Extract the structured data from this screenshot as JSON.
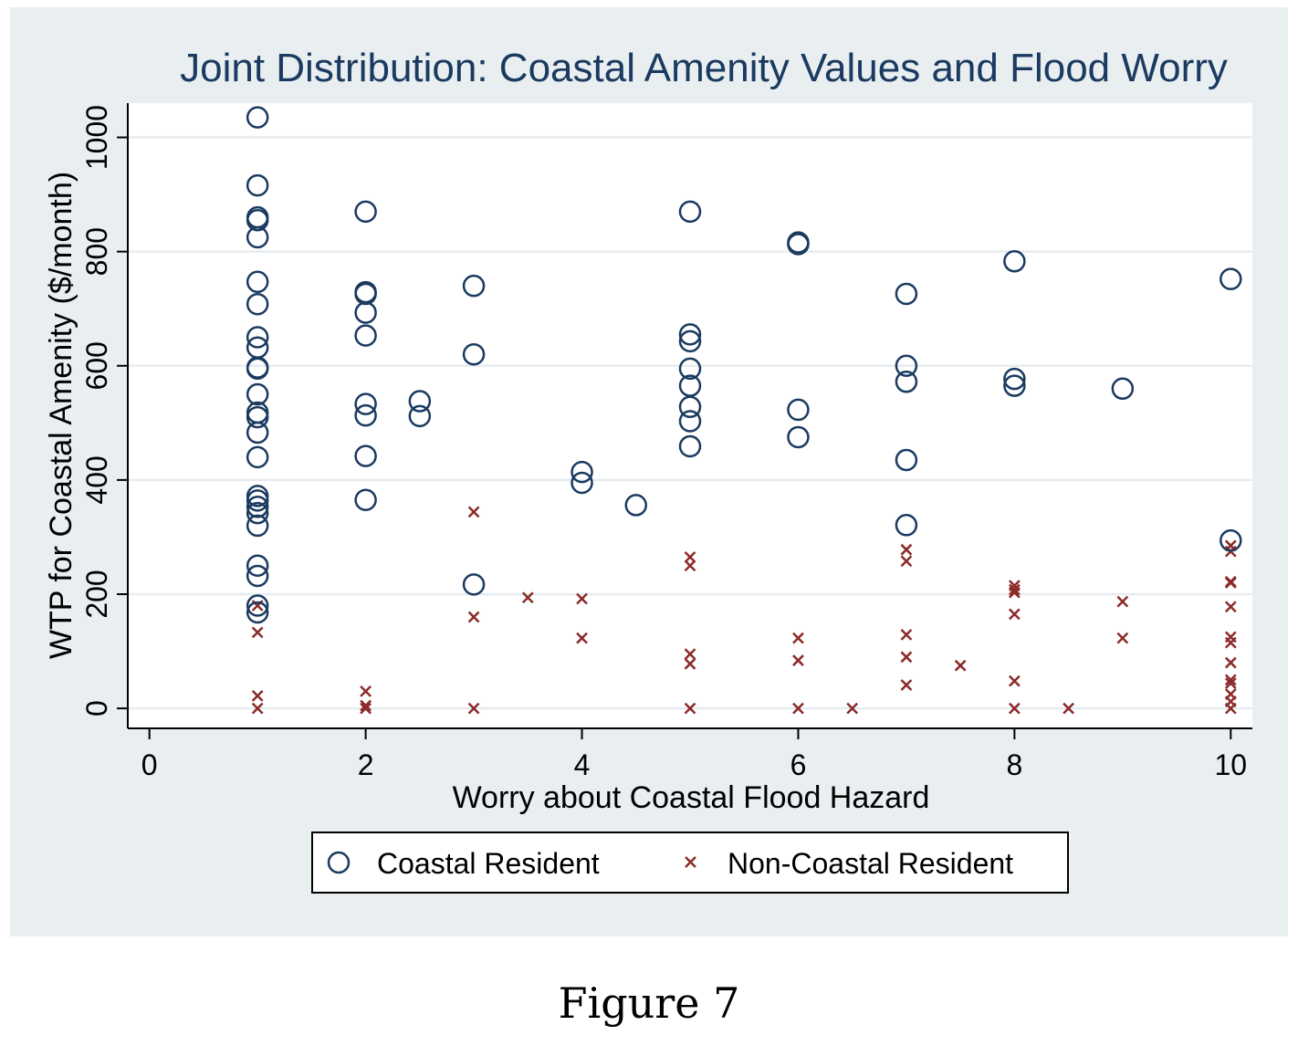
{
  "chart_data": {
    "type": "scatter",
    "title": "Joint Distribution: Coastal Amenity Values and Flood Worry",
    "xlabel": "Worry about Coastal Flood Hazard",
    "ylabel": "WTP for Coastal Amenity ($/month)",
    "xlim": [
      -0.2,
      10.2
    ],
    "ylim": [
      -35,
      1060
    ],
    "xticks": [
      "0",
      "2",
      "4",
      "6",
      "8",
      "10"
    ],
    "yticks": [
      "0",
      "200",
      "400",
      "600",
      "800",
      "1000"
    ],
    "grid": true,
    "legend_position": "bottom",
    "colors": {
      "coastal": "#1a3a60",
      "non_coastal": "#8b2b2b",
      "panel_background": "#e9eef1"
    },
    "series": [
      {
        "name": "Coastal Resident",
        "marker": "hollow-circle",
        "points": [
          [
            1,
            1035
          ],
          [
            1,
            916
          ],
          [
            1,
            860
          ],
          [
            1,
            855
          ],
          [
            1,
            825
          ],
          [
            1,
            747
          ],
          [
            1,
            708
          ],
          [
            1,
            650
          ],
          [
            1,
            632
          ],
          [
            1,
            597
          ],
          [
            1,
            595
          ],
          [
            1,
            550
          ],
          [
            1,
            518
          ],
          [
            1,
            510
          ],
          [
            1,
            483
          ],
          [
            1,
            440
          ],
          [
            1,
            372
          ],
          [
            1,
            364
          ],
          [
            1,
            353
          ],
          [
            1,
            342
          ],
          [
            1,
            320
          ],
          [
            1,
            250
          ],
          [
            1,
            232
          ],
          [
            1,
            180
          ],
          [
            1,
            168
          ],
          [
            2,
            870
          ],
          [
            2,
            729
          ],
          [
            2,
            726
          ],
          [
            2,
            693
          ],
          [
            2,
            653
          ],
          [
            2,
            533
          ],
          [
            2,
            513
          ],
          [
            2,
            442
          ],
          [
            2,
            365
          ],
          [
            2.5,
            538
          ],
          [
            2.5,
            512
          ],
          [
            3,
            740
          ],
          [
            3,
            620
          ],
          [
            3,
            217
          ],
          [
            4,
            414
          ],
          [
            4,
            395
          ],
          [
            4.5,
            356
          ],
          [
            5,
            870
          ],
          [
            5,
            655
          ],
          [
            5,
            643
          ],
          [
            5,
            595
          ],
          [
            5,
            565
          ],
          [
            5,
            528
          ],
          [
            5,
            503
          ],
          [
            5,
            459
          ],
          [
            6,
            816
          ],
          [
            6,
            813
          ],
          [
            6,
            523
          ],
          [
            6,
            475
          ],
          [
            7,
            726
          ],
          [
            7,
            600
          ],
          [
            7,
            572
          ],
          [
            7,
            435
          ],
          [
            7,
            321
          ],
          [
            8,
            783
          ],
          [
            8,
            577
          ],
          [
            8,
            565
          ],
          [
            9,
            560
          ],
          [
            10,
            752
          ],
          [
            10,
            294
          ]
        ]
      },
      {
        "name": "Non-Coastal Resident",
        "marker": "x",
        "points": [
          [
            1,
            180
          ],
          [
            1,
            133
          ],
          [
            1,
            22
          ],
          [
            1,
            0
          ],
          [
            2,
            30
          ],
          [
            2,
            5
          ],
          [
            2,
            0
          ],
          [
            3,
            344
          ],
          [
            3,
            160
          ],
          [
            3,
            0
          ],
          [
            3.5,
            194
          ],
          [
            4,
            192
          ],
          [
            4,
            123
          ],
          [
            5,
            265
          ],
          [
            5,
            250
          ],
          [
            5,
            95
          ],
          [
            5,
            78
          ],
          [
            5,
            0
          ],
          [
            6,
            123
          ],
          [
            6,
            84
          ],
          [
            6,
            0
          ],
          [
            6.5,
            0
          ],
          [
            7,
            278
          ],
          [
            7,
            258
          ],
          [
            7,
            129
          ],
          [
            7,
            90
          ],
          [
            7,
            41
          ],
          [
            7.5,
            75
          ],
          [
            8,
            215
          ],
          [
            8,
            208
          ],
          [
            8,
            203
          ],
          [
            8,
            165
          ],
          [
            8,
            48
          ],
          [
            8,
            0
          ],
          [
            8.5,
            0
          ],
          [
            9,
            187
          ],
          [
            9,
            123
          ],
          [
            10,
            285
          ],
          [
            10,
            275
          ],
          [
            10,
            222
          ],
          [
            10,
            220
          ],
          [
            10,
            178
          ],
          [
            10,
            125
          ],
          [
            10,
            115
          ],
          [
            10,
            80
          ],
          [
            10,
            50
          ],
          [
            10,
            44
          ],
          [
            10,
            25
          ],
          [
            10,
            12
          ],
          [
            10,
            0
          ]
        ]
      }
    ]
  },
  "figure_caption": "Figure 7"
}
